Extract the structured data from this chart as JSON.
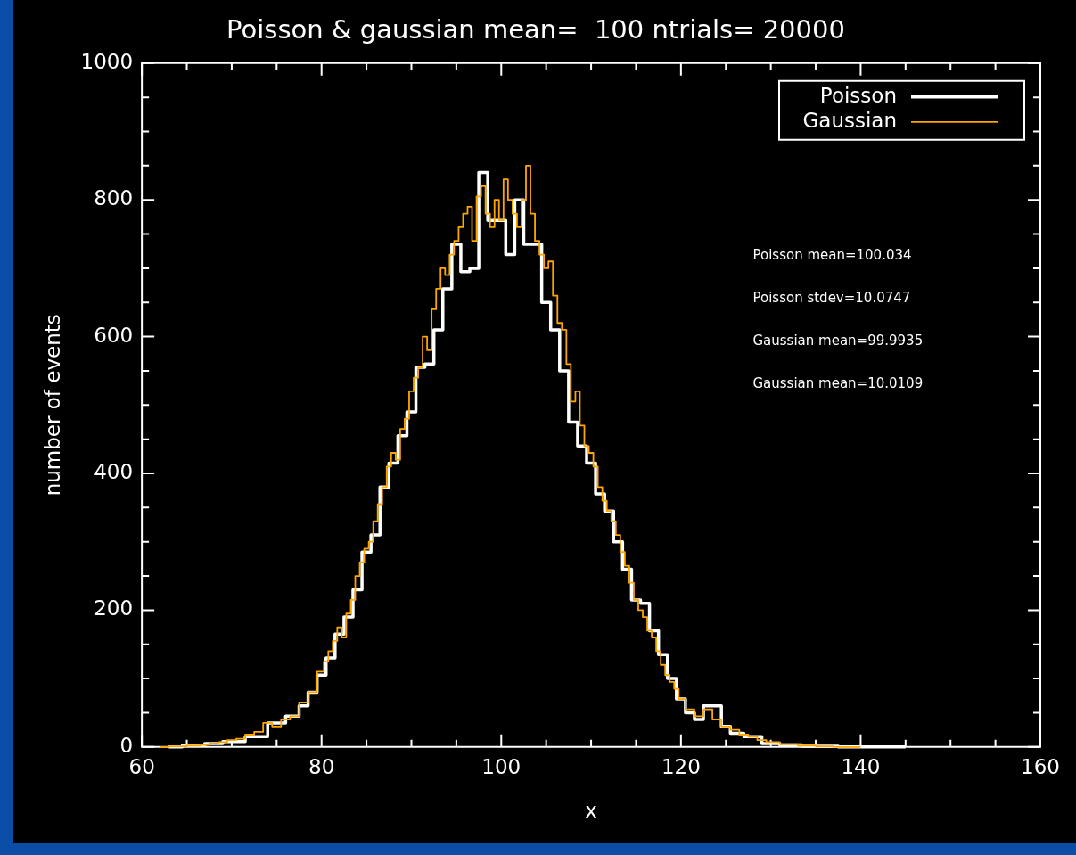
{
  "chart_data": {
    "type": "step",
    "title": "Poisson & gaussian mean=  100 ntrials= 20000",
    "xlabel": "x",
    "ylabel": "number of events",
    "legend": "top right",
    "xlim": [
      60,
      160
    ],
    "ylim": [
      0,
      1000
    ],
    "xticks": [
      60,
      {
        "value": 65,
        "label": null
      },
      {
        "value": 70,
        "label": null
      },
      {
        "value": 75,
        "label": null
      },
      80,
      {
        "value": 85,
        "label": null
      },
      {
        "value": 90,
        "label": null
      },
      {
        "value": 95,
        "label": null
      },
      100,
      {
        "value": 105,
        "label": null
      },
      {
        "value": 110,
        "label": null
      },
      {
        "value": 115,
        "label": null
      },
      120,
      {
        "value": 125,
        "label": null
      },
      {
        "value": 130,
        "label": null
      },
      {
        "value": 135,
        "label": null
      },
      140,
      {
        "value": 145,
        "label": null
      },
      {
        "value": 150,
        "label": null
      },
      {
        "value": 155,
        "label": null
      },
      160
    ],
    "yticks": [
      0,
      {
        "value": 50,
        "label": null
      },
      {
        "value": 100,
        "label": null
      },
      {
        "value": 150,
        "label": null
      },
      200,
      {
        "value": 250,
        "label": null
      },
      {
        "value": 300,
        "label": null
      },
      {
        "value": 350,
        "label": null
      },
      400,
      {
        "value": 450,
        "label": null
      },
      {
        "value": 500,
        "label": null
      },
      {
        "value": 550,
        "label": null
      },
      600,
      {
        "value": 650,
        "label": null
      },
      {
        "value": 700,
        "label": null
      },
      {
        "value": 750,
        "label": null
      },
      800,
      {
        "value": 850,
        "label": null
      },
      {
        "value": 900,
        "label": null
      },
      {
        "value": 950,
        "label": null
      },
      1000
    ],
    "annotations": [
      "Poisson mean=100.034",
      "Poisson stdev=10.0747",
      "Gaussian mean=99.9935",
      "Gaussian mean=10.0109"
    ],
    "series": [
      {
        "name": "Poisson",
        "color": "#ffffff",
        "x": [
          63,
          66,
          68,
          70,
          73,
          75,
          77,
          78,
          79,
          80,
          81,
          82,
          83,
          84,
          85,
          86,
          87,
          88,
          89,
          90,
          91,
          92,
          93,
          94,
          95,
          96,
          97,
          98,
          99,
          100,
          101,
          102,
          103,
          104,
          105,
          106,
          107,
          108,
          109,
          110,
          111,
          112,
          113,
          114,
          115,
          116,
          117,
          118,
          119,
          120,
          121,
          122,
          123,
          124,
          125,
          126,
          128,
          130,
          132,
          135,
          140,
          145
        ],
        "values": [
          0,
          2,
          5,
          8,
          15,
          35,
          45,
          60,
          80,
          105,
          130,
          165,
          190,
          230,
          285,
          310,
          380,
          415,
          455,
          490,
          555,
          560,
          610,
          670,
          735,
          695,
          700,
          840,
          770,
          770,
          720,
          800,
          735,
          735,
          650,
          610,
          550,
          475,
          440,
          415,
          370,
          345,
          300,
          260,
          215,
          210,
          170,
          135,
          100,
          70,
          50,
          40,
          60,
          60,
          30,
          20,
          15,
          5,
          3,
          1,
          0,
          0
        ]
      },
      {
        "name": "Gaussian",
        "color": "#ffa500",
        "x": [
          62,
          64,
          66,
          67,
          68,
          69,
          70,
          71,
          72,
          73,
          74,
          75,
          76,
          77,
          78,
          79,
          80,
          80.5,
          81,
          81.5,
          82,
          82.5,
          83,
          83.5,
          84,
          84.5,
          85,
          85.5,
          86,
          86.5,
          87,
          87.5,
          88,
          88.5,
          89,
          89.5,
          90,
          90.5,
          91,
          91.5,
          92,
          92.5,
          93,
          93.5,
          94,
          94.5,
          95,
          95.5,
          96,
          96.5,
          97,
          97.5,
          98,
          98.5,
          99,
          99.5,
          100,
          100.5,
          101,
          101.5,
          102,
          102.5,
          103,
          103.5,
          104,
          104.5,
          105,
          105.5,
          106,
          106.5,
          107,
          107.5,
          108,
          108.5,
          109,
          109.5,
          110,
          110.5,
          111,
          111.5,
          112,
          112.5,
          113,
          113.5,
          114,
          114.5,
          115,
          115.5,
          116,
          116.5,
          117,
          117.5,
          118,
          118.5,
          119,
          119.5,
          120,
          121,
          122,
          123,
          124,
          125,
          126,
          127,
          128,
          129,
          130,
          132,
          134,
          136,
          138,
          140
        ],
        "values": [
          0,
          1,
          2,
          3,
          5,
          7,
          10,
          12,
          18,
          22,
          35,
          30,
          40,
          45,
          65,
          80,
          110,
          125,
          140,
          155,
          175,
          160,
          195,
          215,
          250,
          270,
          290,
          300,
          330,
          355,
          380,
          410,
          430,
          420,
          465,
          480,
          520,
          540,
          555,
          600,
          580,
          640,
          670,
          700,
          690,
          720,
          740,
          760,
          780,
          790,
          740,
          805,
          820,
          780,
          760,
          800,
          770,
          830,
          800,
          780,
          760,
          800,
          850,
          780,
          740,
          720,
          700,
          710,
          660,
          620,
          610,
          560,
          505,
          520,
          470,
          440,
          430,
          410,
          380,
          360,
          345,
          330,
          310,
          285,
          265,
          240,
          215,
          200,
          190,
          170,
          160,
          140,
          120,
          105,
          95,
          85,
          70,
          55,
          45,
          55,
          40,
          30,
          25,
          18,
          15,
          10,
          7,
          4,
          2,
          1,
          0,
          0
        ]
      }
    ]
  }
}
